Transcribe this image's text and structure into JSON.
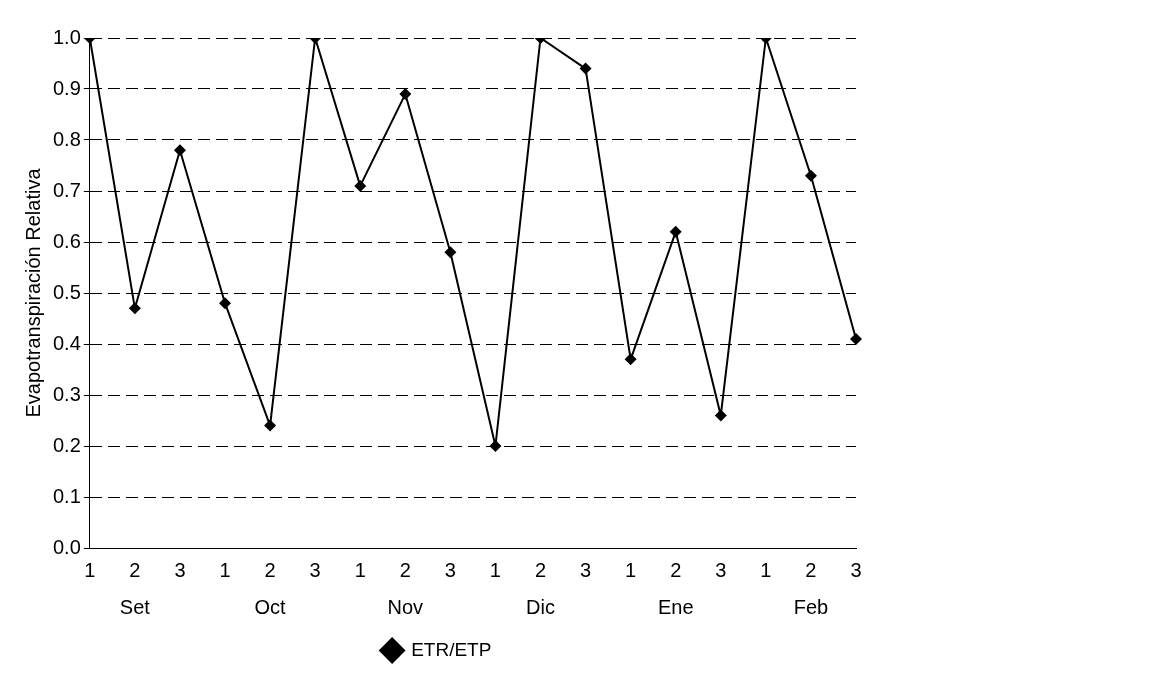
{
  "chart_data": {
    "type": "line",
    "ylabel": "Evapotranspiración Relativa",
    "categories": [
      "1",
      "2",
      "3",
      "1",
      "2",
      "3",
      "1",
      "2",
      "3",
      "1",
      "2",
      "3",
      "1",
      "2",
      "3",
      "1",
      "2",
      "3"
    ],
    "annotations": [
      "Set",
      "Oct",
      "Nov",
      "Dic",
      "Ene",
      "Feb"
    ],
    "series": [
      {
        "name": "ETR/ETP",
        "color": "#000000",
        "values": [
          1.0,
          0.47,
          0.78,
          0.48,
          0.24,
          1.0,
          0.71,
          0.89,
          0.58,
          0.2,
          1.0,
          0.94,
          0.37,
          0.62,
          0.26,
          1.0,
          0.73,
          0.41
        ]
      }
    ],
    "ylim": [
      0,
      1
    ],
    "yticks": [
      {
        "value": 0,
        "label": "0.0"
      },
      {
        "value": 0.1,
        "label": "0.1"
      },
      {
        "value": 0.2,
        "label": "0.2"
      },
      {
        "value": 0.3,
        "label": "0.3"
      },
      {
        "value": 0.4,
        "label": "0.4"
      },
      {
        "value": 0.5,
        "label": "0.5"
      },
      {
        "value": 0.6,
        "label": "0.6"
      },
      {
        "value": 0.7,
        "label": "0.7"
      },
      {
        "value": 0.8,
        "label": "0.8"
      },
      {
        "value": 0.9,
        "label": "0.9"
      },
      {
        "value": 1,
        "label": "1.0"
      }
    ],
    "grid": "y",
    "legend": "bottom",
    "marker": "diamond",
    "line_style": "solid"
  }
}
